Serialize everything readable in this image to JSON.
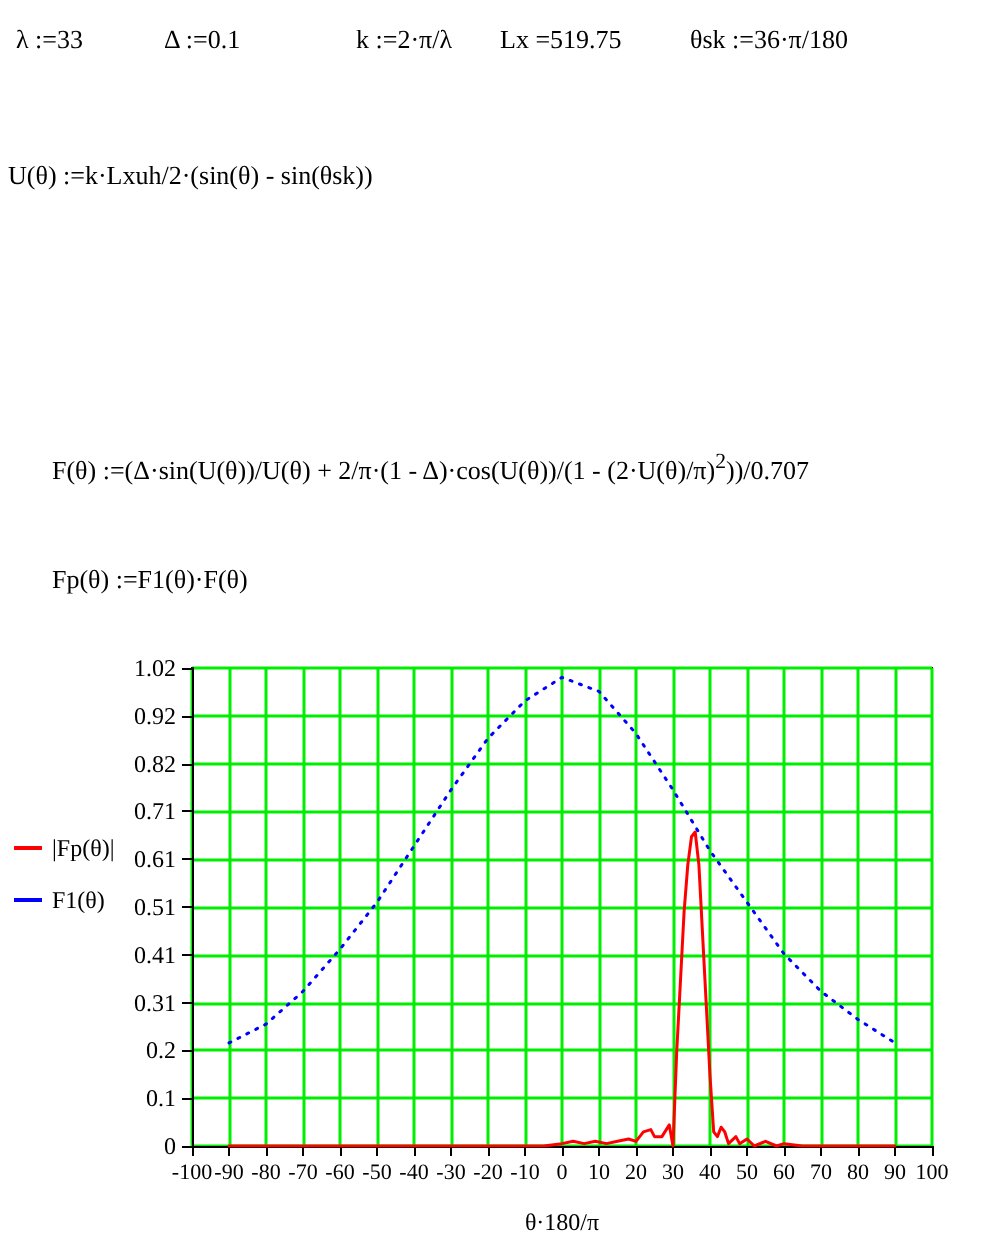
{
  "chart_data": {
    "type": "line",
    "annotations": [
      "λ :=33",
      "Δ :=0.1",
      "k :=2·π/λ",
      "Lx =519.75",
      "θsk :=36·π/180",
      "U(θ) :=k·Lxuh/2·(sin(θ) - sin(θsk))",
      "F(θ) :=(Δ·sin(U(θ))/U(θ) + 2/π·(1 - Δ)·cos(U(θ))/(1 - (2·U(θ)/π)$^{2}$))/0.707",
      "Fp(θ) :=F1(θ)·F(θ)"
    ],
    "xlabel": "θ·180/π",
    "xlim": [
      -100,
      100
    ],
    "xticks": [
      -100,
      -90,
      -80,
      -70,
      -60,
      -50,
      -40,
      -30,
      -20,
      -10,
      0,
      10,
      20,
      30,
      40,
      50,
      60,
      70,
      80,
      90,
      100
    ],
    "ylim": [
      0,
      1.02
    ],
    "yticks": [
      0,
      {
        "value": 0.102,
        "label": "0.1"
      },
      {
        "value": 0.204,
        "label": "0.2"
      },
      {
        "value": 0.306,
        "label": "0.31"
      },
      {
        "value": 0.408,
        "label": "0.41"
      },
      {
        "value": 0.51,
        "label": "0.51"
      },
      {
        "value": 0.612,
        "label": "0.61"
      },
      {
        "value": 0.714,
        "label": "0.71"
      },
      {
        "value": 0.816,
        "label": "0.82"
      },
      {
        "value": 0.918,
        "label": "0.92"
      },
      1.02
    ],
    "grid": true,
    "legend": "left",
    "series": [
      {
        "name": "|Fp(θ)|",
        "color": "#ff0000",
        "line_style": "solid",
        "x": [
          -90,
          -5,
          0,
          3,
          6,
          9,
          12,
          15,
          18,
          20,
          22,
          24,
          25,
          27,
          29,
          30,
          31,
          32,
          33,
          34,
          35,
          36,
          37,
          38,
          39,
          40,
          41,
          42,
          43,
          44,
          45,
          47,
          48,
          50,
          52,
          55,
          58,
          60,
          65,
          90
        ],
        "values": [
          0,
          0,
          0.005,
          0.01,
          0.005,
          0.01,
          0.005,
          0.01,
          0.015,
          0.01,
          0.03,
          0.035,
          0.02,
          0.02,
          0.045,
          0,
          0.2,
          0.35,
          0.5,
          0.6,
          0.66,
          0.67,
          0.6,
          0.45,
          0.3,
          0.15,
          0.03,
          0.02,
          0.04,
          0.03,
          0.005,
          0.02,
          0.005,
          0.015,
          0,
          0.01,
          0,
          0.005,
          0,
          0
        ]
      },
      {
        "name": "F1(θ)",
        "color": "#0000ff",
        "line_style": "dotted",
        "x": [
          -90,
          -80,
          -70,
          -60,
          -50,
          -40,
          -30,
          -20,
          -10,
          0,
          10,
          20,
          30,
          40,
          50,
          60,
          70,
          80,
          90
        ],
        "values": [
          0.22,
          0.26,
          0.33,
          0.42,
          0.52,
          0.64,
          0.76,
          0.87,
          0.95,
          1.0,
          0.97,
          0.88,
          0.76,
          0.63,
          0.52,
          0.41,
          0.33,
          0.27,
          0.22
        ]
      }
    ]
  }
}
